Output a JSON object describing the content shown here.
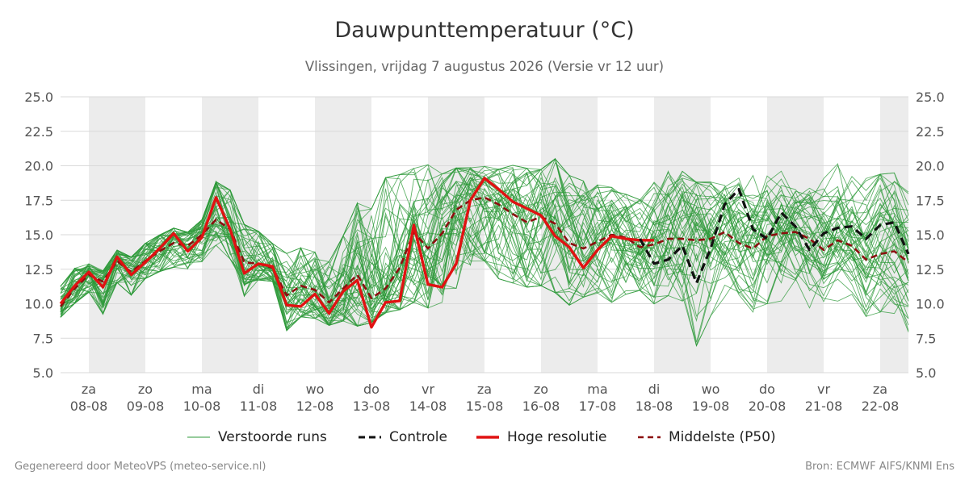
{
  "header": {
    "title": "Dauwpunttemperatuur (°C)",
    "subtitle": "Vlissingen, vrijdag  7 augustus 2026 (Versie vr 12 uur)"
  },
  "footer": {
    "left": "Gegenereerd door MeteoVPS (meteo-service.nl)",
    "right": "Bron: ECMWF AIFS/KNMI Ens"
  },
  "legend": {
    "perturbed": "Verstoorde runs",
    "control": "Controle",
    "hires": "Hoge resolutie",
    "median": "Middelste (P50)"
  },
  "colors": {
    "perturbed": "#2e9a3a",
    "control": "#111111",
    "hires": "#e01212",
    "median": "#8b0f0f",
    "weekend_band": "#ececec",
    "grid": "#d9d9d9"
  },
  "chart_data": {
    "type": "line",
    "title": "Dauwpunttemperatuur (°C)",
    "subtitle": "Vlissingen, vrijdag  7 augustus 2026 (Versie vr 12 uur)",
    "y_unit": "°C",
    "ylim": [
      5.0,
      25.0
    ],
    "yticks": [
      "5.0",
      "7.5",
      "10.0",
      "12.5",
      "15.0",
      "17.5",
      "20.0",
      "22.5",
      "25.0"
    ],
    "y_axis_both_sides": true,
    "grid": true,
    "legend_position": "bottom",
    "x_start": "2026-08-07 12:00",
    "x_end": "2026-08-22 12:00",
    "day_labels": [
      {
        "weekday": "za",
        "date": "08-08"
      },
      {
        "weekday": "zo",
        "date": "09-08"
      },
      {
        "weekday": "ma",
        "date": "10-08"
      },
      {
        "weekday": "di",
        "date": "11-08"
      },
      {
        "weekday": "wo",
        "date": "12-08"
      },
      {
        "weekday": "do",
        "date": "13-08"
      },
      {
        "weekday": "vr",
        "date": "14-08"
      },
      {
        "weekday": "za",
        "date": "15-08"
      },
      {
        "weekday": "zo",
        "date": "16-08"
      },
      {
        "weekday": "ma",
        "date": "17-08"
      },
      {
        "weekday": "di",
        "date": "18-08"
      },
      {
        "weekday": "wo",
        "date": "19-08"
      },
      {
        "weekday": "do",
        "date": "20-08"
      },
      {
        "weekday": "vr",
        "date": "21-08"
      },
      {
        "weekday": "za",
        "date": "22-08"
      }
    ],
    "shaded_days": [
      "2026-08-08",
      "2026-08-10",
      "2026-08-12",
      "2026-08-14",
      "2026-08-16",
      "2026-08-18",
      "2026-08-20",
      "2026-08-22"
    ],
    "series": [
      {
        "name": "Hoge resolutie",
        "x": [
          "2026-08-07 12:00",
          "2026-08-07 18:00",
          "2026-08-08 00:00",
          "2026-08-08 06:00",
          "2026-08-08 12:00",
          "2026-08-08 18:00",
          "2026-08-09 00:00",
          "2026-08-09 06:00",
          "2026-08-09 12:00",
          "2026-08-09 18:00",
          "2026-08-10 00:00",
          "2026-08-10 06:00",
          "2026-08-10 12:00",
          "2026-08-10 18:00",
          "2026-08-11 00:00",
          "2026-08-11 06:00",
          "2026-08-11 12:00",
          "2026-08-11 18:00",
          "2026-08-12 00:00",
          "2026-08-12 06:00",
          "2026-08-12 12:00",
          "2026-08-12 18:00",
          "2026-08-13 00:00",
          "2026-08-13 06:00",
          "2026-08-13 12:00",
          "2026-08-13 18:00",
          "2026-08-14 00:00",
          "2026-08-14 06:00",
          "2026-08-14 12:00",
          "2026-08-14 18:00",
          "2026-08-15 00:00",
          "2026-08-15 06:00",
          "2026-08-15 12:00",
          "2026-08-15 18:00",
          "2026-08-16 00:00",
          "2026-08-16 06:00",
          "2026-08-16 12:00",
          "2026-08-16 18:00",
          "2026-08-17 00:00",
          "2026-08-17 06:00",
          "2026-08-17 12:00",
          "2026-08-17 18:00",
          "2026-08-18 00:00"
        ],
        "y": [
          10.0,
          11.3,
          12.3,
          11.2,
          13.4,
          12.1,
          13.0,
          14.0,
          15.1,
          13.8,
          14.8,
          17.7,
          15.4,
          12.2,
          12.9,
          12.7,
          9.9,
          9.8,
          10.7,
          9.3,
          10.9,
          11.7,
          8.3,
          10.1,
          10.2,
          15.7,
          11.4,
          11.2,
          12.9,
          17.5,
          19.1,
          18.3,
          17.4,
          16.9,
          16.4,
          14.9,
          14.1,
          12.6,
          13.9,
          14.9,
          14.7,
          14.6,
          14.6
        ]
      },
      {
        "name": "Middelste (P50)",
        "x": [
          "2026-08-07 12:00",
          "2026-08-07 18:00",
          "2026-08-08 00:00",
          "2026-08-08 06:00",
          "2026-08-08 12:00",
          "2026-08-08 18:00",
          "2026-08-09 00:00",
          "2026-08-09 06:00",
          "2026-08-09 12:00",
          "2026-08-09 18:00",
          "2026-08-10 00:00",
          "2026-08-10 06:00",
          "2026-08-10 12:00",
          "2026-08-10 18:00",
          "2026-08-11 00:00",
          "2026-08-11 06:00",
          "2026-08-11 12:00",
          "2026-08-11 18:00",
          "2026-08-12 00:00",
          "2026-08-12 06:00",
          "2026-08-12 12:00",
          "2026-08-12 18:00",
          "2026-08-13 00:00",
          "2026-08-13 06:00",
          "2026-08-13 12:00",
          "2026-08-13 18:00",
          "2026-08-14 00:00",
          "2026-08-14 06:00",
          "2026-08-14 12:00",
          "2026-08-14 18:00",
          "2026-08-15 00:00",
          "2026-08-15 06:00",
          "2026-08-15 12:00",
          "2026-08-15 18:00",
          "2026-08-16 00:00",
          "2026-08-16 06:00",
          "2026-08-16 12:00",
          "2026-08-16 18:00",
          "2026-08-17 00:00",
          "2026-08-17 06:00",
          "2026-08-17 12:00",
          "2026-08-17 18:00",
          "2026-08-18 00:00",
          "2026-08-18 06:00",
          "2026-08-18 12:00",
          "2026-08-18 18:00",
          "2026-08-19 00:00",
          "2026-08-19 06:00",
          "2026-08-19 12:00",
          "2026-08-19 18:00",
          "2026-08-20 00:00",
          "2026-08-20 06:00",
          "2026-08-20 12:00",
          "2026-08-20 18:00",
          "2026-08-21 00:00",
          "2026-08-21 06:00",
          "2026-08-21 12:00",
          "2026-08-21 18:00",
          "2026-08-22 00:00",
          "2026-08-22 06:00",
          "2026-08-22 12:00"
        ],
        "y": [
          9.8,
          11.1,
          12.1,
          11.6,
          13.1,
          12.3,
          13.1,
          13.8,
          14.4,
          14.2,
          15.0,
          16.1,
          15.4,
          13.0,
          12.9,
          12.6,
          10.6,
          11.3,
          11.0,
          10.1,
          11.1,
          12.1,
          10.4,
          11.1,
          12.6,
          15.2,
          14.0,
          15.1,
          16.8,
          17.5,
          17.7,
          17.2,
          16.5,
          15.9,
          16.3,
          15.8,
          14.4,
          14.0,
          14.5,
          15.0,
          14.8,
          14.1,
          14.3,
          14.7,
          14.7,
          14.6,
          14.7,
          15.2,
          14.4,
          14.0,
          14.9,
          15.1,
          15.2,
          14.7,
          13.9,
          14.6,
          14.2,
          13.2,
          13.6,
          13.8,
          13.0
        ]
      },
      {
        "name": "Controle",
        "x": [
          "2026-08-17 18:00",
          "2026-08-18 00:00",
          "2026-08-18 06:00",
          "2026-08-18 12:00",
          "2026-08-18 18:00",
          "2026-08-19 00:00",
          "2026-08-19 06:00",
          "2026-08-19 12:00",
          "2026-08-19 18:00",
          "2026-08-20 00:00",
          "2026-08-20 06:00",
          "2026-08-20 12:00",
          "2026-08-20 18:00",
          "2026-08-21 00:00",
          "2026-08-21 06:00",
          "2026-08-21 12:00",
          "2026-08-21 18:00",
          "2026-08-22 00:00",
          "2026-08-22 06:00",
          "2026-08-22 12:00"
        ],
        "y": [
          14.7,
          12.9,
          13.2,
          14.2,
          11.5,
          14.0,
          17.2,
          18.3,
          15.4,
          14.7,
          16.6,
          15.6,
          13.9,
          15.1,
          15.5,
          15.6,
          14.7,
          15.7,
          15.9,
          13.6
        ]
      }
    ],
    "perturbed_runs": {
      "name": "Verstoorde runs",
      "count": 50,
      "x_step_hours": 6,
      "y_spread_min": [
        9.0,
        10.0,
        10.8,
        9.2,
        11.5,
        10.6,
        11.8,
        12.3,
        12.6,
        12.5,
        13.0,
        14.2,
        13.2,
        10.5,
        11.7,
        11.6,
        8.0,
        9.0,
        8.9,
        8.4,
        8.7,
        8.3,
        8.6,
        9.3,
        9.5,
        10.0,
        9.6,
        10.0,
        11.0,
        12.7,
        13.0,
        11.7,
        11.4,
        11.1,
        11.2,
        10.7,
        9.8,
        10.4,
        10.7,
        10.0,
        10.6,
        10.9,
        9.9,
        10.5,
        10.1,
        6.8,
        9.0,
        10.4,
        10.3,
        9.3,
        9.9,
        10.1,
        10.0,
        9.5,
        9.6,
        10.1,
        10.6,
        9.0,
        9.3,
        9.2,
        7.8
      ],
      "y_spread_max": [
        11.3,
        12.6,
        12.9,
        12.4,
        13.9,
        13.4,
        14.4,
        15.0,
        15.5,
        15.2,
        16.1,
        18.9,
        18.3,
        15.8,
        15.3,
        14.4,
        13.7,
        14.1,
        13.8,
        13.1,
        15.0,
        17.4,
        17.0,
        19.3,
        19.5,
        19.9,
        20.2,
        19.5,
        19.9,
        19.9,
        20.0,
        19.8,
        20.1,
        19.9,
        19.8,
        20.6,
        19.4,
        19.0,
        18.7,
        18.5,
        18.0,
        17.6,
        18.9,
        19.7,
        19.7,
        18.9,
        18.9,
        19.1,
        19.2,
        19.4,
        19.9,
        19.7,
        19.1,
        19.0,
        19.7,
        20.3,
        19.6,
        19.2,
        19.5,
        19.6,
        18.2
      ]
    }
  }
}
